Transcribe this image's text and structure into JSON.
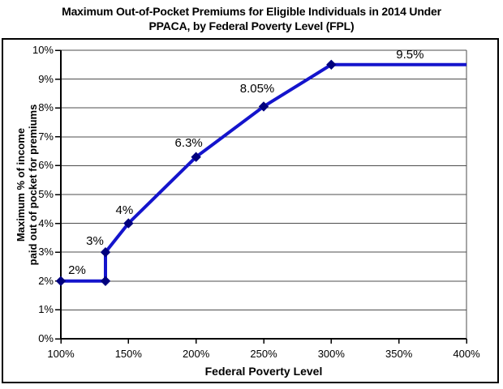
{
  "figure": {
    "title_lines": [
      "Maximum Out-of-Pocket Premiums for Eligible Individuals in 2014 Under",
      "PPACA, by Federal Poverty Level (FPL)"
    ]
  },
  "chart_data": {
    "type": "line",
    "title": "Maximum Out-of-Pocket Premiums for Eligible Individuals in 2014 Under PPACA, by Federal Poverty Level (FPL)",
    "xlabel": "Federal Poverty Level",
    "ylabel": "Maximum % of income paid out of pocket for premiums",
    "ylabel_lines": [
      "Maximum % of income",
      "paid out of pocket for premiums"
    ],
    "xlim": [
      100,
      400
    ],
    "ylim": [
      0,
      10
    ],
    "grid": "horizontal-gridlines",
    "legend": "none",
    "x_ticks": [
      {
        "value": 100,
        "label": "100%"
      },
      {
        "value": 150,
        "label": "150%"
      },
      {
        "value": 200,
        "label": "200%"
      },
      {
        "value": 250,
        "label": "250%"
      },
      {
        "value": 300,
        "label": "300%"
      },
      {
        "value": 350,
        "label": "350%"
      },
      {
        "value": 400,
        "label": "400%"
      }
    ],
    "y_ticks": [
      {
        "value": 0,
        "label": "0%"
      },
      {
        "value": 1,
        "label": "1%"
      },
      {
        "value": 2,
        "label": "2%"
      },
      {
        "value": 3,
        "label": "3%"
      },
      {
        "value": 4,
        "label": "4%"
      },
      {
        "value": 5,
        "label": "5%"
      },
      {
        "value": 6,
        "label": "6%"
      },
      {
        "value": 7,
        "label": "7%"
      },
      {
        "value": 8,
        "label": "8%"
      },
      {
        "value": 9,
        "label": "9%"
      },
      {
        "value": 10,
        "label": "10%"
      }
    ],
    "series": [
      {
        "marker": "diamond",
        "points": [
          {
            "x": 100,
            "y": 2,
            "marker": true,
            "label": "2%",
            "label_dx": 20,
            "label_dy": -13
          },
          {
            "x": 133,
            "y": 2,
            "marker": true
          },
          {
            "x": 133,
            "y": 3,
            "marker": true,
            "label": "3%",
            "label_dx": -13,
            "label_dy": -13
          },
          {
            "x": 150,
            "y": 4,
            "marker": true,
            "label": "4%",
            "label_dx": -5,
            "label_dy": -16
          },
          {
            "x": 200,
            "y": 6.3,
            "marker": true,
            "label": "6.3%",
            "label_dx": -9,
            "label_dy": -17
          },
          {
            "x": 250,
            "y": 8.05,
            "marker": true,
            "label": "8.05%",
            "label_dx": -8,
            "label_dy": -21
          },
          {
            "x": 300,
            "y": 9.5,
            "marker": true,
            "label": "9.5%",
            "label_dx": 97,
            "label_dy": -12
          },
          {
            "x": 400,
            "y": 9.5,
            "marker": false
          }
        ]
      }
    ],
    "colors": {
      "line": "#1414cc",
      "marker": "#00007e",
      "gridline": "#4d4d4d",
      "axis": "#000000",
      "text": "#000000",
      "background": "#ffffff"
    }
  }
}
